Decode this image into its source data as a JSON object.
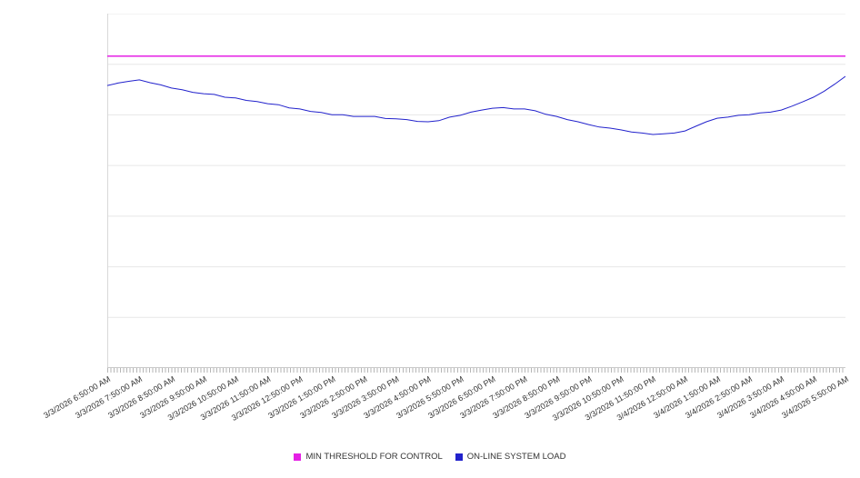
{
  "chart_data": {
    "type": "line",
    "title": "",
    "xlabel": "",
    "ylabel": "",
    "y_axis_labeled": false,
    "ylim": [
      0,
      100
    ],
    "grid": true,
    "y_gridline_count": 7,
    "legend_position": "bottom-center",
    "x_minor_tick_interval_minutes": 10,
    "x_labels": [
      "3/3/2026 6:50:00 AM",
      "3/3/2026 7:50:00 AM",
      "3/3/2026 8:50:00 AM",
      "3/3/2026 9:50:00 AM",
      "3/3/2026 10:50:00 AM",
      "3/3/2026 11:50:00 AM",
      "3/3/2026 12:50:00 PM",
      "3/3/2026 1:50:00 PM",
      "3/3/2026 2:50:00 PM",
      "3/3/2026 3:50:00 PM",
      "3/3/2026 4:50:00 PM",
      "3/3/2026 5:50:00 PM",
      "3/3/2026 6:50:00 PM",
      "3/3/2026 7:50:00 PM",
      "3/3/2026 8:50:00 PM",
      "3/3/2026 9:50:00 PM",
      "3/3/2026 10:50:00 PM",
      "3/3/2026 11:50:00 PM",
      "3/4/2026 12:50:00 AM",
      "3/4/2026 1:50:00 AM",
      "3/4/2026 2:50:00 AM",
      "3/4/2026 3:50:00 AM",
      "3/4/2026 4:50:00 AM",
      "3/4/2026 5:50:00 AM"
    ],
    "series": [
      {
        "name": "MIN THRESHOLD FOR CONTROL",
        "kind": "threshold",
        "color": "#e520e5",
        "value": 88
      },
      {
        "name": "ON-LINE SYSTEM LOAD",
        "kind": "line",
        "color": "#2222cc",
        "points_per_hour": 3,
        "values": [
          79.7,
          80.4,
          80.9,
          81.3,
          80.5,
          79.9,
          79.0,
          78.5,
          77.8,
          77.4,
          77.2,
          76.4,
          76.2,
          75.5,
          75.2,
          74.6,
          74.3,
          73.4,
          73.1,
          72.4,
          72.1,
          71.5,
          71.5,
          71.0,
          71.0,
          71.0,
          70.4,
          70.3,
          70.1,
          69.6,
          69.5,
          69.8,
          70.8,
          71.3,
          72.2,
          72.8,
          73.3,
          73.5,
          73.1,
          73.1,
          72.6,
          71.6,
          71.0,
          70.1,
          69.5,
          68.7,
          68.0,
          67.7,
          67.2,
          66.6,
          66.3,
          65.9,
          66.1,
          66.3,
          66.9,
          68.2,
          69.5,
          70.5,
          70.8,
          71.3,
          71.5,
          72.0,
          72.2,
          72.8,
          73.9,
          75.1,
          76.4,
          78.1,
          80.1,
          82.3
        ]
      }
    ],
    "colors": {
      "gridline": "#e7e7e7",
      "axis_line": "#c9c9c9",
      "plot_border": "#d8d8d8",
      "label_text": "#333333"
    }
  }
}
